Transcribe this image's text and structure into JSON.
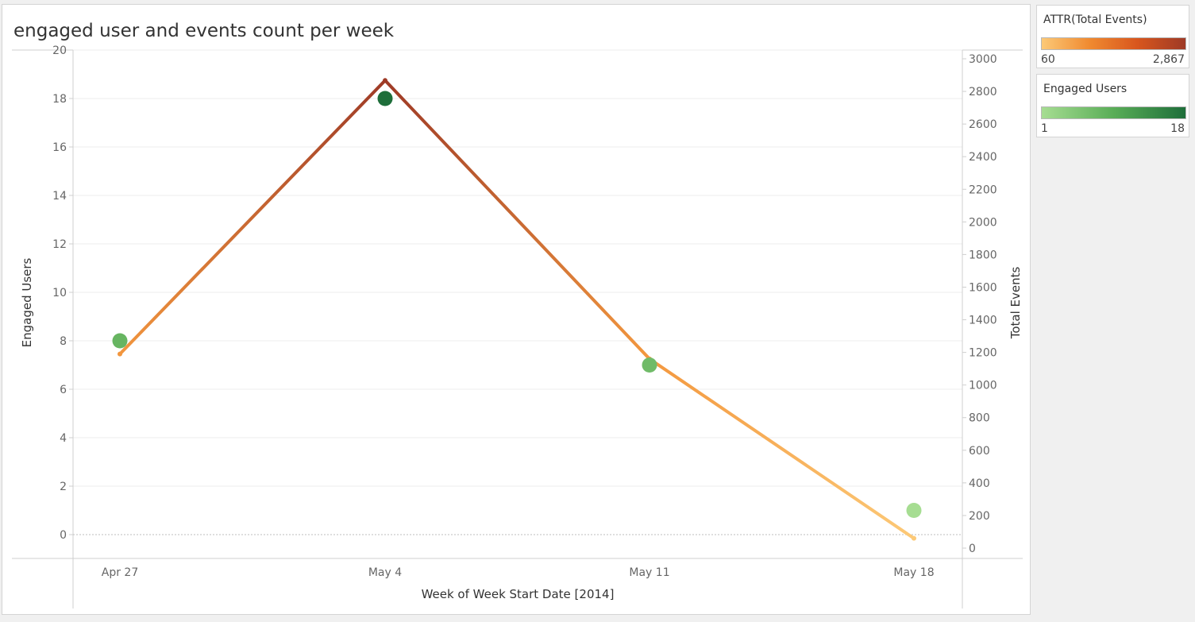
{
  "chart_data": {
    "type": "line",
    "title": "engaged user and events count per week",
    "xlabel": "Week of Week Start Date [2014]",
    "ylabel_left": "Engaged Users",
    "ylabel_right": "Total Events",
    "categories": [
      "Apr 27",
      "May 4",
      "May 11",
      "May 18"
    ],
    "series": [
      {
        "name": "Engaged Users",
        "mark": "circle",
        "axis": "left",
        "values": [
          8,
          18,
          7,
          1
        ]
      },
      {
        "name": "Total Events",
        "mark": "line",
        "axis": "right",
        "values": [
          1190,
          2867,
          1160,
          60
        ]
      }
    ],
    "ylim_left": [
      -1,
      20
    ],
    "yticks_left": [
      0,
      2,
      4,
      6,
      8,
      10,
      12,
      14,
      16,
      18,
      20
    ],
    "ylim_right": [
      -50,
      3000
    ],
    "yticks_right": [
      0,
      200,
      400,
      600,
      800,
      1000,
      1200,
      1400,
      1600,
      1800,
      2000,
      2200,
      2400,
      2600,
      2800,
      3000
    ],
    "grid": true,
    "legend_position": "right"
  },
  "legends": {
    "events": {
      "title": "ATTR(Total Events)",
      "min": "60",
      "max": "2,867"
    },
    "users": {
      "title": "Engaged Users",
      "min": "1",
      "max": "18"
    }
  },
  "colors": {
    "events_low": "#fcc977",
    "events_mid": "#f08a30",
    "events_high": "#9e3a26",
    "users_low": "#a6dd92",
    "users_mid": "#59ad57",
    "users_high": "#1e6e3a",
    "gridline": "#ececec",
    "axis": "#cfcfcf"
  }
}
